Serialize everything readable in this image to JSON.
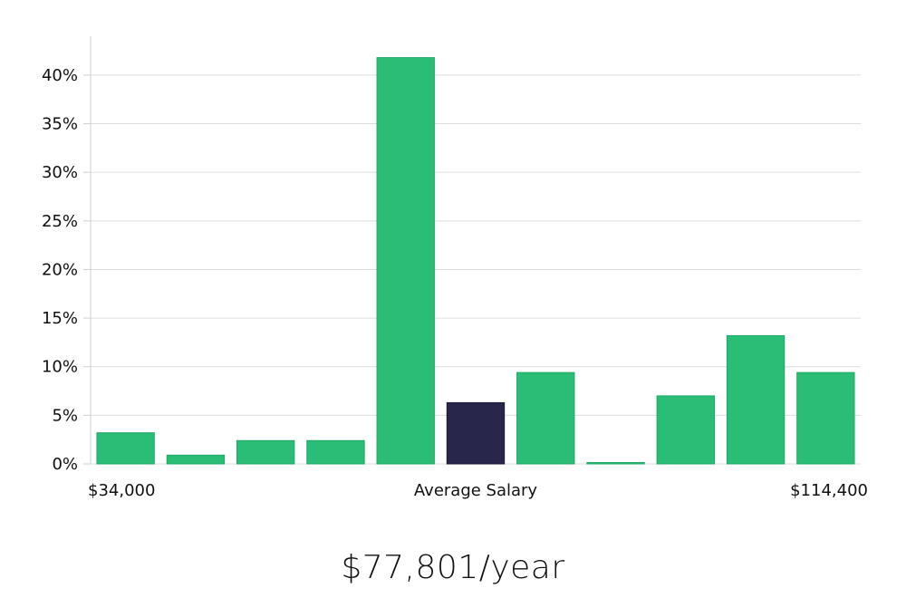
{
  "chart_data": {
    "type": "bar",
    "title": "",
    "xlabel": "Average Salary",
    "ylabel": "",
    "x_start_label": "$34,000",
    "x_end_label": "$114,400",
    "ylim": [
      0,
      44
    ],
    "yticks": [
      0,
      5,
      10,
      15,
      20,
      25,
      30,
      35,
      40
    ],
    "ytick_labels": [
      "0%",
      "5%",
      "10%",
      "15%",
      "20%",
      "25%",
      "30%",
      "35%",
      "40%"
    ],
    "values": [
      3.2,
      0.9,
      2.4,
      2.4,
      41.8,
      6.3,
      9.4,
      0.1,
      7.0,
      13.2,
      9.4
    ],
    "highlight_index": 5,
    "colors": {
      "bar": "#2abd75",
      "bar_edge": "#1fa865",
      "highlight": "#29264b",
      "grid": "#dddddd",
      "axis": "#cfcfcf"
    }
  },
  "summary": {
    "salary_label": "$77,801/year"
  }
}
